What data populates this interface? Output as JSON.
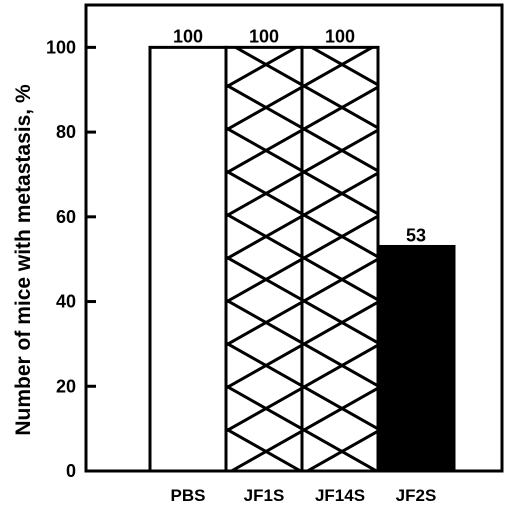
{
  "chart_data": {
    "type": "bar",
    "title": "",
    "xlabel": "",
    "ylabel": "Number of mice with metastasis, %",
    "ylim": [
      0,
      110
    ],
    "yticks": [
      0,
      20,
      40,
      60,
      80,
      100
    ],
    "categories": [
      "PBS",
      "JF1S",
      "JF14S",
      "JF2S"
    ],
    "values": [
      100,
      100,
      100,
      53
    ],
    "data_labels": [
      "100",
      "100",
      "100",
      "53"
    ],
    "fills": [
      "white",
      "single-hatch",
      "cross-hatch",
      "solid-black"
    ],
    "grid": false,
    "legend": "none"
  }
}
